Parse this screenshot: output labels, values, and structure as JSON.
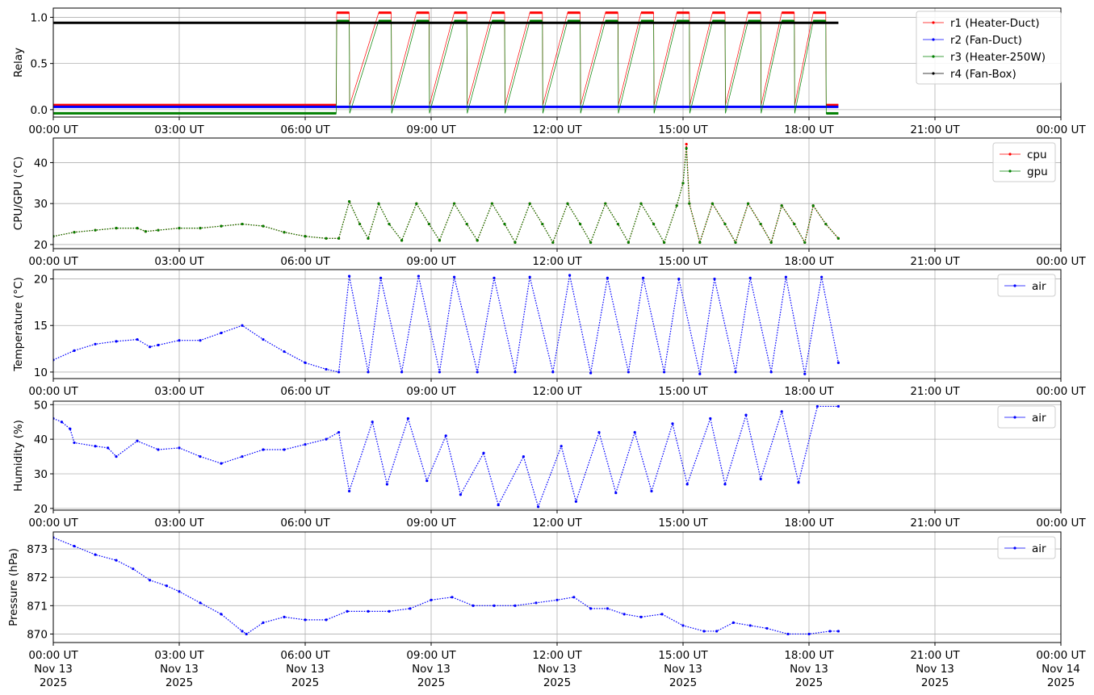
{
  "chart_data": [
    {
      "type": "line",
      "ylabel": "Relay",
      "ylim": [
        -0.08,
        1.1
      ],
      "yticks": [
        0.0,
        0.5,
        1.0
      ],
      "ytick_labels": [
        "0.0",
        "0.5",
        "1.0"
      ],
      "x_unit": "hours since 00:00 UT Nov 13 2025",
      "xlim": [
        0,
        24
      ],
      "grid": true,
      "legend_loc": "upper right",
      "series": [
        {
          "name": "r1 (Heater-Duct)",
          "color": "#ff0000",
          "style": "relay",
          "on_level": 1.05,
          "off_level": 0.05
        },
        {
          "name": "r2 (Fan-Duct)",
          "color": "#0000ff",
          "style": "relay",
          "on_level": 0.03,
          "off_level": 0.03
        },
        {
          "name": "r3 (Heater-250W)",
          "color": "#008000",
          "style": "relay",
          "on_level": 0.96,
          "off_level": -0.04
        },
        {
          "name": "r4 (Fan-Box)",
          "color": "#000000",
          "style": "relay",
          "on_level": 0.94,
          "off_level": 0.94
        }
      ],
      "relay_on_intervals": [
        [
          6.75,
          7.05
        ],
        [
          7.75,
          8.05
        ],
        [
          8.65,
          8.95
        ],
        [
          9.55,
          9.85
        ],
        [
          10.45,
          10.75
        ],
        [
          11.35,
          11.65
        ],
        [
          12.25,
          12.55
        ],
        [
          13.15,
          13.45
        ],
        [
          14.0,
          14.3
        ],
        [
          14.85,
          15.15
        ],
        [
          15.7,
          16.0
        ],
        [
          16.55,
          16.85
        ],
        [
          17.35,
          17.65
        ],
        [
          18.1,
          18.4
        ]
      ],
      "data_end": 18.7
    },
    {
      "type": "line",
      "ylabel": "CPU/GPU (°C)",
      "ylim": [
        19,
        46
      ],
      "yticks": [
        20,
        30,
        40
      ],
      "ytick_labels": [
        "20",
        "30",
        "40"
      ],
      "xlim": [
        0,
        24
      ],
      "grid": true,
      "legend_loc": "upper right",
      "series": [
        {
          "name": "cpu",
          "color": "#ff0000",
          "x": [
            0,
            0.5,
            1.0,
            1.5,
            2.0,
            2.2,
            2.5,
            3.0,
            3.5,
            4.0,
            4.5,
            5.0,
            5.5,
            6.0,
            6.5,
            6.8,
            7.05,
            7.3,
            7.5,
            7.75,
            8.0,
            8.3,
            8.65,
            8.95,
            9.2,
            9.55,
            9.85,
            10.1,
            10.45,
            10.75,
            11.0,
            11.35,
            11.65,
            11.9,
            12.25,
            12.55,
            12.8,
            13.15,
            13.45,
            13.7,
            14.0,
            14.3,
            14.55,
            14.85,
            15.0,
            15.08,
            15.15,
            15.4,
            15.7,
            16.0,
            16.25,
            16.55,
            16.85,
            17.1,
            17.35,
            17.65,
            17.9,
            18.1,
            18.4,
            18.7
          ],
          "values": [
            22,
            23,
            23.5,
            24,
            24,
            23.2,
            23.5,
            24,
            24,
            24.5,
            25,
            24.5,
            23,
            22,
            21.5,
            21.5,
            30.5,
            25,
            21.5,
            30,
            25,
            21,
            30,
            25,
            21,
            30,
            25,
            21,
            30,
            25,
            20.5,
            30,
            25,
            20.5,
            30,
            25,
            20.5,
            30,
            25,
            20.5,
            30,
            25,
            20.5,
            29.5,
            35,
            44.5,
            30,
            20.5,
            30,
            25,
            20.5,
            30,
            25,
            20.5,
            29.5,
            25,
            20.5,
            29.5,
            25,
            21.5
          ]
        },
        {
          "name": "gpu",
          "color": "#008000",
          "x": [
            0,
            0.5,
            1.0,
            1.5,
            2.0,
            2.2,
            2.5,
            3.0,
            3.5,
            4.0,
            4.5,
            5.0,
            5.5,
            6.0,
            6.5,
            6.8,
            7.05,
            7.3,
            7.5,
            7.75,
            8.0,
            8.3,
            8.65,
            8.95,
            9.2,
            9.55,
            9.85,
            10.1,
            10.45,
            10.75,
            11.0,
            11.35,
            11.65,
            11.9,
            12.25,
            12.55,
            12.8,
            13.15,
            13.45,
            13.7,
            14.0,
            14.3,
            14.55,
            14.85,
            15.0,
            15.08,
            15.15,
            15.4,
            15.7,
            16.0,
            16.25,
            16.55,
            16.85,
            17.1,
            17.35,
            17.65,
            17.9,
            18.1,
            18.4,
            18.7
          ],
          "values": [
            22,
            23,
            23.5,
            24,
            24,
            23.2,
            23.5,
            24,
            24,
            24.5,
            25,
            24.5,
            23,
            22,
            21.5,
            21.5,
            30.5,
            25,
            21.5,
            30,
            25,
            21,
            30,
            25,
            21,
            30,
            25,
            21,
            30,
            25,
            20.5,
            30,
            25,
            20.5,
            30,
            25,
            20.5,
            30,
            25,
            20.5,
            30,
            25,
            20.5,
            29.5,
            35,
            43.5,
            30,
            20.5,
            30,
            25,
            20.5,
            30,
            25,
            20.5,
            29.5,
            25,
            20.5,
            29.5,
            25,
            21.5
          ]
        }
      ]
    },
    {
      "type": "line",
      "ylabel": "Temperature (°C)",
      "ylim": [
        9.3,
        21
      ],
      "yticks": [
        10,
        15,
        20
      ],
      "ytick_labels": [
        "10",
        "15",
        "20"
      ],
      "xlim": [
        0,
        24
      ],
      "grid": true,
      "legend_loc": "upper right",
      "series": [
        {
          "name": "air",
          "color": "#0000ff",
          "x": [
            0,
            0.5,
            1.0,
            1.5,
            2.0,
            2.3,
            2.5,
            3.0,
            3.5,
            4.0,
            4.5,
            5.0,
            5.5,
            6.0,
            6.5,
            6.8,
            7.05,
            7.5,
            7.8,
            8.3,
            8.7,
            9.2,
            9.55,
            10.1,
            10.5,
            11.0,
            11.35,
            11.9,
            12.3,
            12.8,
            13.2,
            13.7,
            14.05,
            14.55,
            14.9,
            15.4,
            15.75,
            16.25,
            16.6,
            17.1,
            17.45,
            17.9,
            18.3,
            18.7
          ],
          "values": [
            11.3,
            12.3,
            13.0,
            13.3,
            13.5,
            12.7,
            12.9,
            13.4,
            13.4,
            14.2,
            15.0,
            13.5,
            12.2,
            11.0,
            10.3,
            10.0,
            20.3,
            10.0,
            20.1,
            10.0,
            20.3,
            10.0,
            20.2,
            10.0,
            20.1,
            10.0,
            20.2,
            10.0,
            20.4,
            9.9,
            20.1,
            10.0,
            20.1,
            10.0,
            20.0,
            9.8,
            20.0,
            10.0,
            20.1,
            10.0,
            20.2,
            9.8,
            20.2,
            11.0
          ]
        }
      ]
    },
    {
      "type": "line",
      "ylabel": "Humidity (%)",
      "ylim": [
        19.5,
        51
      ],
      "yticks": [
        20,
        30,
        40,
        50
      ],
      "ytick_labels": [
        "20",
        "30",
        "40",
        "50"
      ],
      "xlim": [
        0,
        24
      ],
      "grid": true,
      "legend_loc": "upper right",
      "series": [
        {
          "name": "air",
          "color": "#0000ff",
          "x": [
            0,
            0.2,
            0.4,
            0.5,
            1.0,
            1.3,
            1.5,
            2.0,
            2.5,
            3.0,
            3.5,
            4.0,
            4.5,
            5.0,
            5.5,
            6.0,
            6.5,
            6.8,
            7.05,
            7.6,
            7.95,
            8.45,
            8.9,
            9.35,
            9.7,
            10.25,
            10.6,
            11.2,
            11.55,
            12.1,
            12.45,
            13.0,
            13.4,
            13.85,
            14.25,
            14.75,
            15.1,
            15.65,
            16.0,
            16.5,
            16.85,
            17.35,
            17.75,
            18.2,
            18.7
          ],
          "values": [
            46,
            45,
            43,
            39,
            38,
            37.5,
            35,
            39.5,
            37,
            37.5,
            35,
            33,
            35,
            37,
            37,
            38.5,
            40,
            42,
            25,
            45,
            27,
            46,
            28,
            41,
            24,
            36,
            21,
            35,
            20.5,
            38,
            22,
            42,
            24.5,
            42,
            25,
            44.5,
            27,
            46,
            27,
            47,
            28.5,
            48,
            27.5,
            49.5,
            49.5
          ]
        }
      ]
    },
    {
      "type": "line",
      "ylabel": "Pressure (hPa)",
      "ylim": [
        869.7,
        873.6
      ],
      "yticks": [
        870,
        871,
        872,
        873
      ],
      "ytick_labels": [
        "870",
        "871",
        "872",
        "873"
      ],
      "xlim": [
        0,
        24
      ],
      "grid": true,
      "legend_loc": "upper right",
      "series": [
        {
          "name": "air",
          "color": "#0000ff",
          "x": [
            0,
            0.5,
            1.0,
            1.5,
            1.9,
            2.3,
            2.7,
            3.0,
            3.5,
            4.0,
            4.5,
            4.6,
            5.0,
            5.5,
            6.0,
            6.5,
            7.0,
            7.5,
            8.0,
            8.5,
            9.0,
            9.5,
            10.0,
            10.5,
            11.0,
            11.5,
            12.0,
            12.4,
            12.8,
            13.2,
            13.6,
            14.0,
            14.5,
            15.0,
            15.5,
            15.8,
            16.2,
            16.6,
            17.0,
            17.5,
            18.0,
            18.5,
            18.7
          ],
          "values": [
            873.4,
            873.1,
            872.8,
            872.6,
            872.3,
            871.9,
            871.7,
            871.5,
            871.1,
            870.7,
            870.1,
            870.0,
            870.4,
            870.6,
            870.5,
            870.5,
            870.8,
            870.8,
            870.8,
            870.9,
            871.2,
            871.3,
            871.0,
            871.0,
            871.0,
            871.1,
            871.2,
            871.3,
            870.9,
            870.9,
            870.7,
            870.6,
            870.7,
            870.3,
            870.1,
            870.1,
            870.4,
            870.3,
            870.2,
            870.0,
            870.0,
            870.1,
            870.1
          ]
        }
      ]
    }
  ],
  "x_ticks_short": [
    "00:00 UT",
    "03:00 UT",
    "06:00 UT",
    "09:00 UT",
    "12:00 UT",
    "15:00 UT",
    "18:00 UT",
    "21:00 UT",
    "00:00 UT"
  ],
  "x_ticks_bottom": [
    {
      "time": "00:00 UT",
      "date": "Nov 13",
      "year": "2025"
    },
    {
      "time": "03:00 UT",
      "date": "Nov 13",
      "year": "2025"
    },
    {
      "time": "06:00 UT",
      "date": "Nov 13",
      "year": "2025"
    },
    {
      "time": "09:00 UT",
      "date": "Nov 13",
      "year": "2025"
    },
    {
      "time": "12:00 UT",
      "date": "Nov 13",
      "year": "2025"
    },
    {
      "time": "15:00 UT",
      "date": "Nov 13",
      "year": "2025"
    },
    {
      "time": "18:00 UT",
      "date": "Nov 13",
      "year": "2025"
    },
    {
      "time": "21:00 UT",
      "date": "Nov 13",
      "year": "2025"
    },
    {
      "time": "00:00 UT",
      "date": "Nov 14",
      "year": "2025"
    }
  ]
}
